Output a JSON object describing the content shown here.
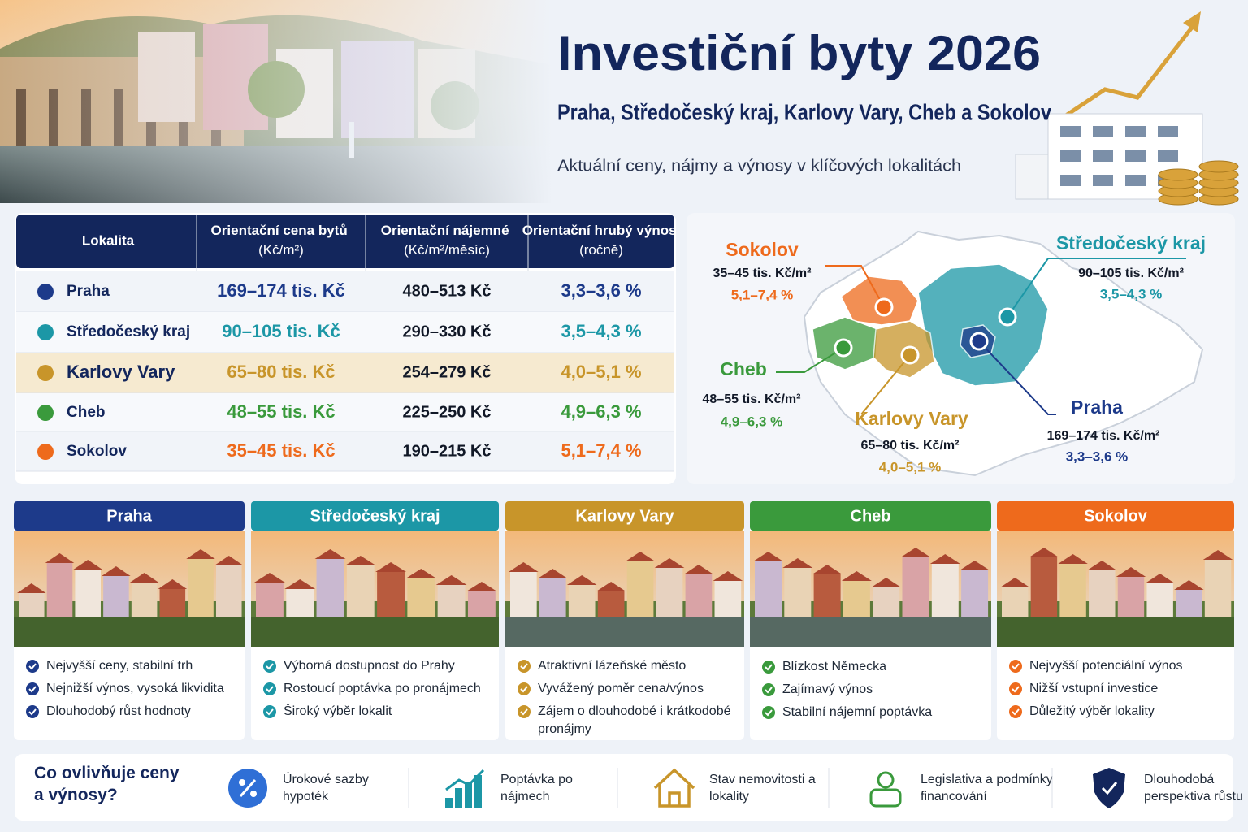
{
  "header": {
    "title": "Investiční byty 2026",
    "subtitle": "Praha, Středočeský kraj, Karlovy Vary, Cheb a Sokolov",
    "tagline": "Aktuální ceny, nájmy a výnosy v klíčových lokalitách"
  },
  "regions": [
    {
      "name": "Praha",
      "color": "#1d3a8a"
    },
    {
      "name": "Středočeský kraj",
      "color": "#1c97a6"
    },
    {
      "name": "Karlovy Vary",
      "color": "#c8952a"
    },
    {
      "name": "Cheb",
      "color": "#3a9a3c"
    },
    {
      "name": "Sokolov",
      "color": "#ee6a1c"
    }
  ],
  "table": {
    "columns": [
      "Lokalita",
      "Orientační cena bytů (Kč/m²)",
      "Orientační nájemné (Kč/m²/měsíc)",
      "Orientační hrubý výnos (ročně)"
    ],
    "rows": [
      [
        "Praha",
        "169–174 tis. Kč",
        "480–513 Kč",
        "3,3–3,6 %"
      ],
      [
        "Středočeský kraj",
        "90–105 tis. Kč",
        "290–330 Kč",
        "3,5–4,3 %"
      ],
      [
        "Karlovy Vary",
        "65–80 tis. Kč",
        "254–279 Kč",
        "4,0–5,1 %"
      ],
      [
        "Cheb",
        "48–55 tis. Kč",
        "225–250 Kč",
        "4,9–6,3 %"
      ],
      [
        "Sokolov",
        "35–45 tis. Kč",
        "190–215 Kč",
        "5,1–7,4 %"
      ]
    ],
    "highlight_row": 2
  },
  "map": {
    "labels": [
      {
        "name": "Praha",
        "price": "169–174 tis. Kč/m²",
        "yield": "3,3–3,6 %"
      },
      {
        "name": "Středočeský kraj",
        "price": "90–105 tis. Kč/m²",
        "yield": "3,5–4,3 %"
      },
      {
        "name": "Karlovy Vary",
        "price": "65–80 tis. Kč/m²",
        "yield": "4,0–5,1 %"
      },
      {
        "name": "Cheb",
        "price": "48–55 tis. Kč/m²",
        "yield": "4,9–6,3 %"
      },
      {
        "name": "Sokolov",
        "price": "35–45 tis. Kč/m²",
        "yield": "5,1–7,4 %"
      }
    ]
  },
  "cards": [
    {
      "title": "Praha",
      "bullets": [
        "Nejvyšší ceny, stabilní trh",
        "Nejnižší výnos, vysoká likvidita",
        "Dlouhodobý růst hodnoty"
      ]
    },
    {
      "title": "Středočeský kraj",
      "bullets": [
        "Výborná dostupnost do Prahy",
        "Rostoucí poptávka po pronájmech",
        "Široký výběr lokalit"
      ]
    },
    {
      "title": "Karlovy Vary",
      "bullets": [
        "Atraktivní lázeňské město",
        "Vyvážený poměr cena/výnos",
        "Zájem o dlouhodobé i krátkodobé pronájmy"
      ]
    },
    {
      "title": "Cheb",
      "bullets": [
        "Blízkost Německa",
        "Zajímavý výnos",
        "Stabilní nájemní poptávka"
      ]
    },
    {
      "title": "Sokolov",
      "bullets": [
        "Nejvyšší potenciální výnos",
        "Nižší vstupní investice",
        "Důležitý výběr lokality"
      ]
    }
  ],
  "factors": {
    "title": "Co ovlivňuje ceny a výnosy?",
    "items": [
      "Úrokové sazby hypoték",
      "Poptávka po nájmech",
      "Stav nemovitosti a lokality",
      "Legislativa a podmínky financování",
      "Dlouhodobá perspektiva růstu"
    ]
  }
}
